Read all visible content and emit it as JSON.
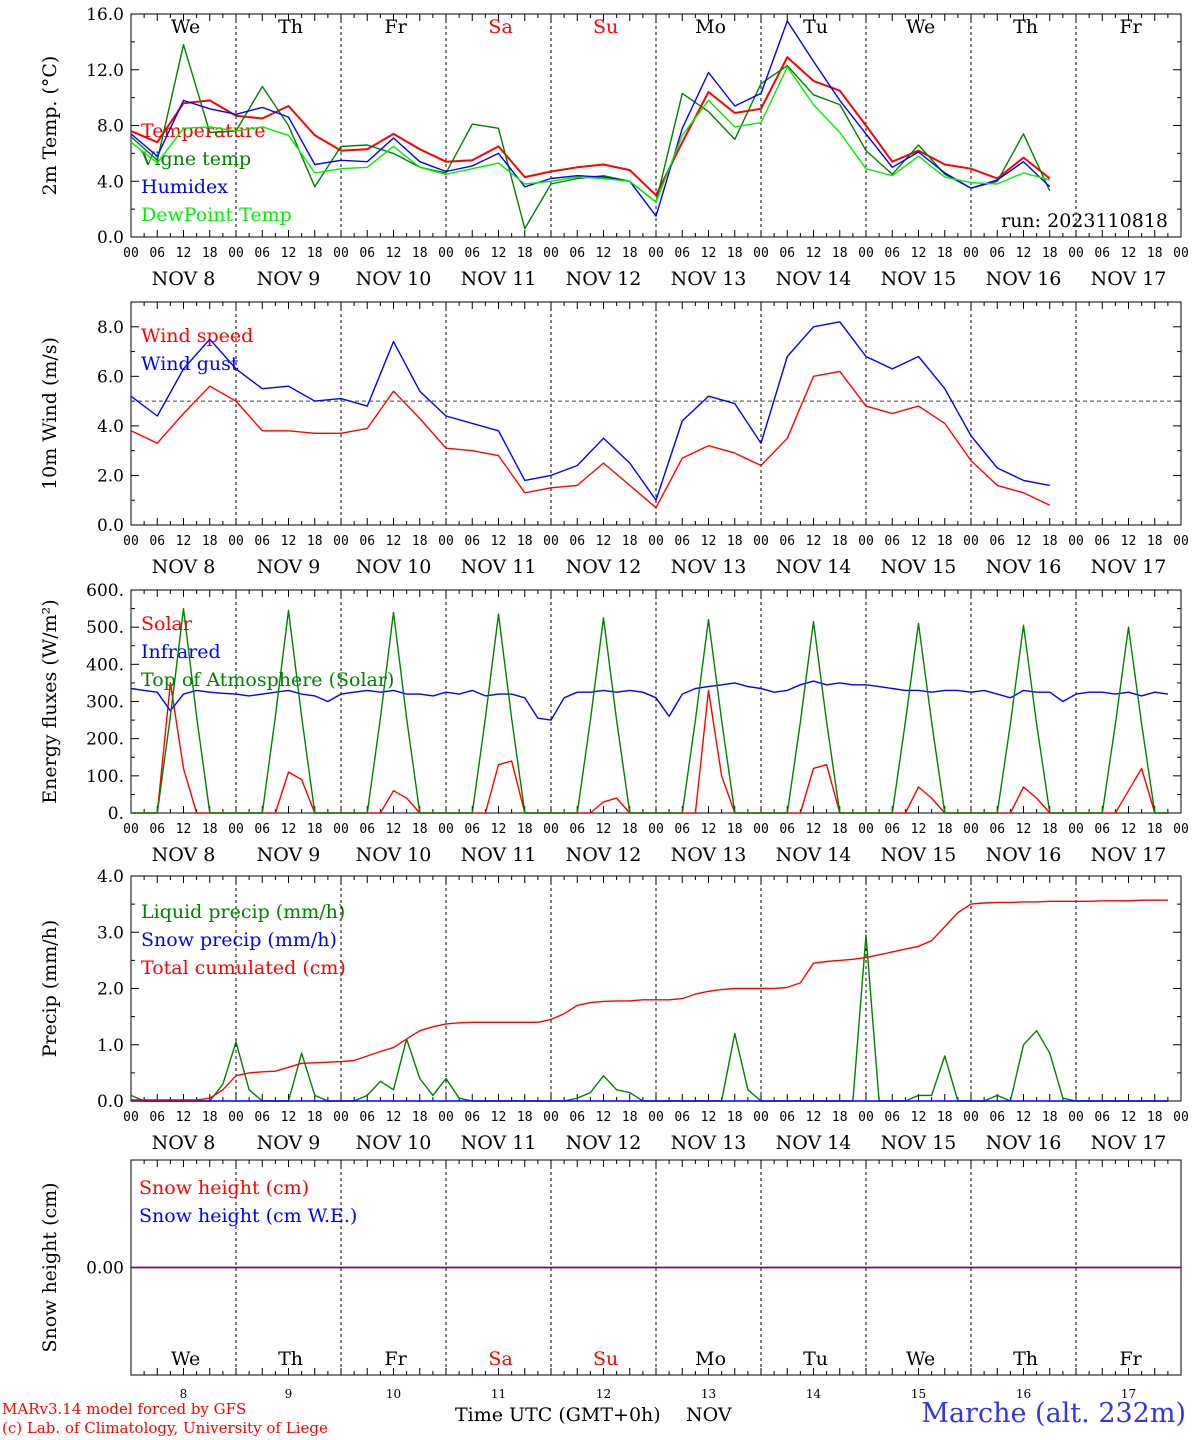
{
  "colors": {
    "red": "#ff0000",
    "green": "#008000",
    "blue": "#0000ff",
    "lightgreen": "#00ee00",
    "black": "#000000",
    "weekend": "#ff0000",
    "station": "#3333ee",
    "snow_line": "#800080"
  },
  "time_axis": {
    "start": "2023-11-08T00:00Z",
    "step_hours": 6,
    "days": 10,
    "hour_labels": [
      "00",
      "06",
      "12",
      "18"
    ],
    "date_labels": [
      "NOV  8",
      "NOV  9",
      "NOV 10",
      "NOV 11",
      "NOV 12",
      "NOV 13",
      "NOV 14",
      "NOV 15",
      "NOV 16",
      "NOV 17"
    ],
    "weekday_labels": [
      "We",
      "Th",
      "Fr",
      "Sa",
      "Su",
      "Mo",
      "Tu",
      "We",
      "Th",
      "Fr"
    ],
    "weekend_flags": [
      false,
      false,
      false,
      true,
      true,
      false,
      false,
      false,
      false,
      false
    ],
    "day_numbers": [
      "8",
      "9",
      "10",
      "11",
      "12",
      "13",
      "14",
      "15",
      "16",
      "17"
    ]
  },
  "footer": {
    "credit_line1": "MARv3.14 model forced by GFS",
    "credit_line2": "(c) Lab. of Climatology, University of Liege",
    "xlabel": "Time UTC (GMT+0h)",
    "month": "NOV",
    "station": "Marche (alt. 232m)"
  },
  "chart_data": [
    {
      "type": "line",
      "ylabel": "2m Temp. (°C)",
      "ylim": [
        0,
        16
      ],
      "yticks": [
        0,
        4,
        8,
        12,
        16
      ],
      "ytick_labels": [
        "0.0",
        "4.0",
        "8.0",
        "12.0",
        "16.0"
      ],
      "annotation": "run: 2023110818",
      "x_step_hours": 6,
      "series": [
        {
          "name": "Temperature",
          "color": "red",
          "values": [
            7.6,
            6.8,
            9.6,
            9.8,
            8.7,
            8.5,
            9.4,
            7.3,
            6.2,
            6.3,
            7.4,
            6.3,
            5.4,
            5.5,
            6.5,
            4.3,
            4.7,
            5.0,
            5.2,
            4.8,
            3.0,
            6.8,
            10.4,
            8.9,
            9.2,
            12.9,
            11.2,
            10.5,
            8.0,
            5.4,
            6.2,
            5.2,
            4.9,
            4.2,
            5.7,
            4.2
          ]
        },
        {
          "name": "Vigne temp",
          "color": "green",
          "values": [
            7.2,
            5.5,
            13.8,
            7.5,
            7.6,
            10.8,
            8.0,
            3.6,
            6.5,
            6.6,
            6.0,
            5.0,
            4.6,
            8.1,
            7.8,
            0.6,
            3.8,
            4.2,
            4.4,
            4.0,
            2.5,
            10.3,
            9.0,
            7.0,
            11.0,
            12.3,
            10.2,
            9.5,
            6.2,
            4.5,
            6.6,
            4.5,
            3.5,
            4.0,
            7.4,
            3.3
          ]
        },
        {
          "name": "Humidex",
          "color": "blue",
          "values": [
            7.4,
            5.8,
            9.8,
            9.2,
            8.8,
            9.3,
            8.6,
            5.2,
            5.5,
            5.4,
            7.1,
            5.4,
            4.7,
            5.1,
            6.0,
            3.6,
            4.2,
            4.4,
            4.3,
            4.0,
            1.5,
            7.8,
            11.8,
            9.4,
            10.3,
            15.5,
            12.6,
            9.8,
            7.4,
            5.0,
            6.1,
            4.6,
            3.5,
            4.1,
            5.4,
            3.6
          ]
        },
        {
          "name": "DewPoint Temp",
          "color": "lightgreen",
          "values": [
            6.8,
            5.3,
            7.8,
            7.9,
            7.6,
            7.9,
            7.3,
            4.6,
            4.9,
            5.0,
            6.5,
            5.0,
            4.5,
            4.9,
            5.3,
            3.8,
            4.0,
            4.3,
            4.2,
            4.0,
            2.5,
            7.3,
            9.8,
            7.9,
            8.2,
            12.2,
            9.5,
            7.5,
            4.9,
            4.4,
            5.8,
            4.3,
            3.9,
            3.8,
            4.6,
            4.1
          ]
        }
      ]
    },
    {
      "type": "line",
      "ylabel": "10m Wind (m/s)",
      "ylim": [
        0,
        9
      ],
      "yticks": [
        0,
        2,
        4,
        6,
        8
      ],
      "ytick_labels": [
        "0.0",
        "2.0",
        "4.0",
        "6.0",
        "8.0"
      ],
      "reference_line": 5,
      "x_step_hours": 6,
      "series": [
        {
          "name": "Wind speed",
          "color": "red",
          "values": [
            3.8,
            3.3,
            4.5,
            5.6,
            5.0,
            3.8,
            3.8,
            3.7,
            3.7,
            3.9,
            5.4,
            4.3,
            3.1,
            3.0,
            2.8,
            1.3,
            1.5,
            1.6,
            2.5,
            1.6,
            0.7,
            2.7,
            3.2,
            2.9,
            2.4,
            3.5,
            6.0,
            6.2,
            4.8,
            4.5,
            4.8,
            4.1,
            2.6,
            1.6,
            1.3,
            0.8
          ]
        },
        {
          "name": "Wind gust",
          "color": "blue",
          "values": [
            5.2,
            4.4,
            6.3,
            7.5,
            6.3,
            5.5,
            5.6,
            5.0,
            5.1,
            4.8,
            7.4,
            5.4,
            4.4,
            4.1,
            3.8,
            1.8,
            2.0,
            2.4,
            3.5,
            2.5,
            1.0,
            4.2,
            5.2,
            4.9,
            3.3,
            6.8,
            8.0,
            8.2,
            6.8,
            6.3,
            6.8,
            5.5,
            3.6,
            2.3,
            1.8,
            1.6
          ]
        }
      ]
    },
    {
      "type": "line",
      "ylabel": "Energy fluxes (W/m²)",
      "ylim": [
        0,
        600
      ],
      "yticks": [
        0,
        100,
        200,
        300,
        400,
        500,
        600
      ],
      "ytick_labels": [
        "0.",
        "100.",
        "200.",
        "300.",
        "400.",
        "500.",
        "600."
      ],
      "x_step_hours": 3,
      "series": [
        {
          "name": "Solar",
          "color": "red",
          "values": [
            0,
            0,
            0,
            350,
            120,
            0,
            0,
            0,
            0,
            0,
            0,
            0,
            110,
            90,
            0,
            0,
            0,
            0,
            0,
            0,
            60,
            40,
            0,
            0,
            0,
            0,
            0,
            0,
            130,
            140,
            0,
            0,
            0,
            0,
            0,
            0,
            30,
            40,
            0,
            0,
            0,
            0,
            0,
            0,
            330,
            100,
            0,
            0,
            0,
            0,
            0,
            0,
            120,
            130,
            0,
            0,
            0,
            0,
            0,
            0,
            70,
            40,
            0,
            0,
            0,
            0,
            0,
            0,
            70,
            40,
            0,
            0,
            0,
            0,
            0,
            0,
            60,
            120,
            0,
            0
          ]
        },
        {
          "name": "Infrared",
          "color": "blue",
          "values": [
            335,
            330,
            325,
            275,
            320,
            330,
            325,
            322,
            320,
            315,
            320,
            325,
            330,
            320,
            315,
            300,
            320,
            325,
            330,
            325,
            330,
            320,
            320,
            315,
            325,
            320,
            330,
            315,
            320,
            320,
            310,
            255,
            250,
            310,
            325,
            325,
            330,
            325,
            330,
            325,
            310,
            260,
            320,
            335,
            340,
            345,
            350,
            340,
            335,
            325,
            330,
            345,
            355,
            345,
            350,
            345,
            345,
            340,
            335,
            330,
            330,
            325,
            330,
            330,
            325,
            330,
            320,
            310,
            330,
            325,
            325,
            300,
            320,
            325,
            325,
            320,
            325,
            315,
            325,
            320
          ]
        },
        {
          "name": "Top of Atmosphere (Solar)",
          "color": "green",
          "values": [
            0,
            0,
            0,
            260,
            550,
            260,
            0,
            0,
            0,
            0,
            0,
            260,
            545,
            260,
            0,
            0,
            0,
            0,
            0,
            255,
            540,
            255,
            0,
            0,
            0,
            0,
            0,
            255,
            535,
            255,
            0,
            0,
            0,
            0,
            0,
            250,
            525,
            250,
            0,
            0,
            0,
            0,
            0,
            250,
            520,
            250,
            0,
            0,
            0,
            0,
            0,
            245,
            515,
            245,
            0,
            0,
            0,
            0,
            0,
            245,
            510,
            245,
            0,
            0,
            0,
            0,
            0,
            240,
            505,
            240,
            0,
            0,
            0,
            0,
            0,
            240,
            500,
            240,
            0,
            0
          ]
        }
      ]
    },
    {
      "type": "line",
      "ylabel": "Precip (mm/h)",
      "ylim": [
        0,
        4
      ],
      "yticks": [
        0,
        1,
        2,
        3,
        4
      ],
      "ytick_labels": [
        "0.0",
        "1.0",
        "2.0",
        "3.0",
        "4.0"
      ],
      "x_step_hours": 3,
      "series": [
        {
          "name": "Liquid precip (mm/h)",
          "color": "green",
          "values": [
            0.1,
            0,
            0,
            0,
            0,
            0,
            0,
            0.3,
            1.05,
            0.2,
            0,
            0,
            0,
            0.85,
            0.1,
            0,
            0,
            0,
            0.1,
            0.35,
            0.2,
            1.1,
            0.4,
            0.1,
            0.4,
            0.05,
            0,
            0,
            0,
            0,
            0,
            0,
            0,
            0,
            0.05,
            0.15,
            0.45,
            0.2,
            0.15,
            0,
            0,
            0,
            0,
            0,
            0,
            0,
            1.2,
            0.2,
            0,
            0,
            0,
            0,
            0,
            0,
            0,
            0,
            2.95,
            0,
            0,
            0,
            0.1,
            0.1,
            0.8,
            0,
            0,
            0,
            0.1,
            0,
            1.0,
            1.25,
            0.85,
            0.05,
            0,
            0,
            0,
            0,
            0,
            0,
            0,
            0
          ]
        },
        {
          "name": "Snow precip (mm/h)",
          "color": "blue",
          "values": [
            0,
            0,
            0,
            0,
            0,
            0,
            0,
            0,
            0,
            0,
            0,
            0,
            0,
            0,
            0,
            0,
            0,
            0,
            0,
            0,
            0,
            0,
            0,
            0,
            0,
            0,
            0,
            0,
            0,
            0,
            0,
            0,
            0,
            0,
            0,
            0,
            0,
            0,
            0,
            0,
            0,
            0,
            0,
            0,
            0,
            0,
            0,
            0,
            0,
            0,
            0,
            0,
            0,
            0,
            0,
            0,
            0,
            0,
            0,
            0,
            0,
            0,
            0,
            0,
            0,
            0,
            0,
            0,
            0,
            0,
            0,
            0,
            0,
            0,
            0,
            0,
            0,
            0,
            0,
            0
          ]
        },
        {
          "name": "Total cumulated (cm)",
          "color": "red",
          "values": [
            0.02,
            0.02,
            0.02,
            0.02,
            0.02,
            0.02,
            0.05,
            0.2,
            0.45,
            0.5,
            0.52,
            0.53,
            0.6,
            0.67,
            0.68,
            0.69,
            0.7,
            0.72,
            0.8,
            0.88,
            0.95,
            1.1,
            1.25,
            1.32,
            1.37,
            1.39,
            1.4,
            1.4,
            1.4,
            1.4,
            1.4,
            1.4,
            1.45,
            1.55,
            1.7,
            1.75,
            1.77,
            1.78,
            1.78,
            1.8,
            1.8,
            1.8,
            1.82,
            1.9,
            1.95,
            1.98,
            2.0,
            2.0,
            2.0,
            2.0,
            2.02,
            2.1,
            2.45,
            2.48,
            2.5,
            2.52,
            2.55,
            2.6,
            2.65,
            2.7,
            2.75,
            2.85,
            3.1,
            3.35,
            3.5,
            3.52,
            3.53,
            3.53,
            3.54,
            3.54,
            3.55,
            3.55,
            3.55,
            3.55,
            3.56,
            3.56,
            3.56,
            3.57,
            3.57,
            3.57
          ]
        }
      ]
    },
    {
      "type": "line",
      "ylabel": "Snow height (cm)",
      "ylim": [
        -1,
        1
      ],
      "yticks": [
        0
      ],
      "ytick_labels": [
        "0.00"
      ],
      "x_step_hours": 6,
      "series": [
        {
          "name": "Snow height (cm)",
          "color": "red",
          "values": [
            0,
            0,
            0,
            0,
            0,
            0,
            0,
            0,
            0,
            0,
            0,
            0,
            0,
            0,
            0,
            0,
            0,
            0,
            0,
            0,
            0,
            0,
            0,
            0,
            0,
            0,
            0,
            0,
            0,
            0,
            0,
            0,
            0,
            0,
            0,
            0,
            0,
            0,
            0,
            0,
            0
          ]
        },
        {
          "name": "Snow height (cm W.E.)",
          "color": "blue",
          "values": [
            0,
            0,
            0,
            0,
            0,
            0,
            0,
            0,
            0,
            0,
            0,
            0,
            0,
            0,
            0,
            0,
            0,
            0,
            0,
            0,
            0,
            0,
            0,
            0,
            0,
            0,
            0,
            0,
            0,
            0,
            0,
            0,
            0,
            0,
            0,
            0,
            0,
            0,
            0,
            0,
            0
          ]
        }
      ]
    }
  ]
}
